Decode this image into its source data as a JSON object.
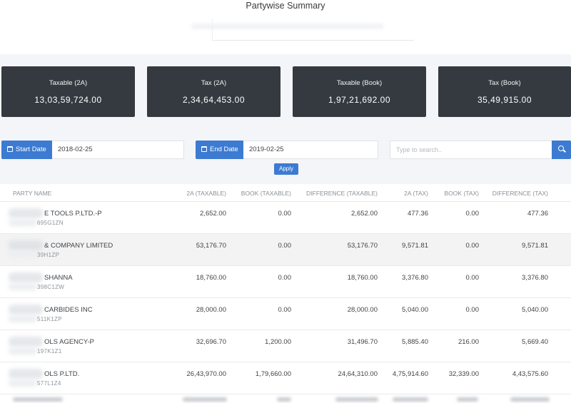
{
  "page": {
    "title": "Partywise Summary"
  },
  "summary_cards": [
    {
      "label": "Taxable (2A)",
      "value": "13,03,59,724.00"
    },
    {
      "label": "Tax (2A)",
      "value": "2,34,64,453.00"
    },
    {
      "label": "Taxable (Book)",
      "value": "1,97,21,692.00"
    },
    {
      "label": "Tax (Book)",
      "value": "35,49,915.00"
    }
  ],
  "filters": {
    "start_date_label": "Start Date",
    "start_date_value": "2018-02-25",
    "end_date_label": "End Date",
    "end_date_value": "2019-02-25",
    "search_placeholder": "Type to search..",
    "apply_label": "Apply",
    "icons": {
      "date": "calendar-icon",
      "search": "search-icon"
    },
    "accent_color": "#3c7bd1"
  },
  "table": {
    "columns": [
      "PARTY NAME",
      "2A (TAXABLE)",
      "BOOK (TAXABLE)",
      "DIFFERENCE (TAXABLE)",
      "2A (TAX)",
      "BOOK (TAX)",
      "DIFFERENCE (TAX)"
    ],
    "rows": [
      {
        "party": "E TOOLS P.LTD.-P",
        "gstin": "695G1ZN",
        "a2_taxable": "2,652.00",
        "book_taxable": "0.00",
        "diff_taxable": "2,652.00",
        "a2_tax": "477.36",
        "book_tax": "0.00",
        "diff_tax": "477.36"
      },
      {
        "party": "& COMPANY LIMITED",
        "gstin": "39H1ZP",
        "a2_taxable": "53,176.70",
        "book_taxable": "0.00",
        "diff_taxable": "53,176.70",
        "a2_tax": "9,571.81",
        "book_tax": "0.00",
        "diff_tax": "9,571.81"
      },
      {
        "party": "SHANNA",
        "gstin": "398C1ZW",
        "a2_taxable": "18,760.00",
        "book_taxable": "0.00",
        "diff_taxable": "18,760.00",
        "a2_tax": "3,376.80",
        "book_tax": "0.00",
        "diff_tax": "3,376.80"
      },
      {
        "party": "CARBIDES INC",
        "gstin": "511K1ZP",
        "a2_taxable": "28,000.00",
        "book_taxable": "0.00",
        "diff_taxable": "28,000.00",
        "a2_tax": "5,040.00",
        "book_tax": "0.00",
        "diff_tax": "5,040.00"
      },
      {
        "party": "OLS AGENCY-P",
        "gstin": "197K1Z1",
        "a2_taxable": "32,696.70",
        "book_taxable": "1,200.00",
        "diff_taxable": "31,496.70",
        "a2_tax": "5,885.40",
        "book_tax": "216.00",
        "diff_tax": "5,669.40"
      },
      {
        "party": "OLS P.LTD.",
        "gstin": "577L1Z4",
        "a2_taxable": "26,43,970.00",
        "book_taxable": "1,79,660.00",
        "diff_taxable": "24,64,310.00",
        "a2_tax": "4,75,914.60",
        "book_tax": "32,339.00",
        "diff_tax": "4,43,575.60"
      }
    ]
  }
}
